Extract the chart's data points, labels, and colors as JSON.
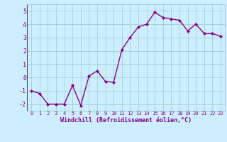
{
  "x": [
    0,
    1,
    2,
    3,
    4,
    5,
    6,
    7,
    8,
    9,
    10,
    11,
    12,
    13,
    14,
    15,
    16,
    17,
    18,
    19,
    20,
    21,
    22,
    23
  ],
  "y": [
    -1.0,
    -1.2,
    -2.0,
    -2.0,
    -2.0,
    -0.6,
    -2.1,
    0.1,
    0.5,
    -0.3,
    -0.35,
    2.1,
    3.0,
    3.8,
    4.0,
    4.9,
    4.5,
    4.4,
    4.3,
    3.5,
    4.0,
    3.3,
    3.3,
    3.1
  ],
  "line_color": "#880088",
  "marker": "D",
  "marker_size": 2,
  "background_color": "#cceeff",
  "grid_color": "#99cccc",
  "xlabel": "Windchill (Refroidissement éolien,°C)",
  "xlabel_color": "#880088",
  "tick_color": "#880088",
  "xlim": [
    -0.5,
    23.5
  ],
  "ylim": [
    -2.5,
    5.5
  ],
  "yticks": [
    -2,
    -1,
    0,
    1,
    2,
    3,
    4,
    5
  ],
  "xticks": [
    0,
    1,
    2,
    3,
    4,
    5,
    6,
    7,
    8,
    9,
    10,
    11,
    12,
    13,
    14,
    15,
    16,
    17,
    18,
    19,
    20,
    21,
    22,
    23
  ],
  "xtick_labels": [
    "0",
    "1",
    "2",
    "3",
    "4",
    "5",
    "6",
    "7",
    "8",
    "9",
    "10",
    "11",
    "12",
    "13",
    "14",
    "15",
    "16",
    "17",
    "18",
    "19",
    "20",
    "21",
    "22",
    "23"
  ],
  "line_width": 1.0,
  "xlabel_fontsize": 6.0,
  "xtick_fontsize": 5.0,
  "ytick_fontsize": 6.0
}
